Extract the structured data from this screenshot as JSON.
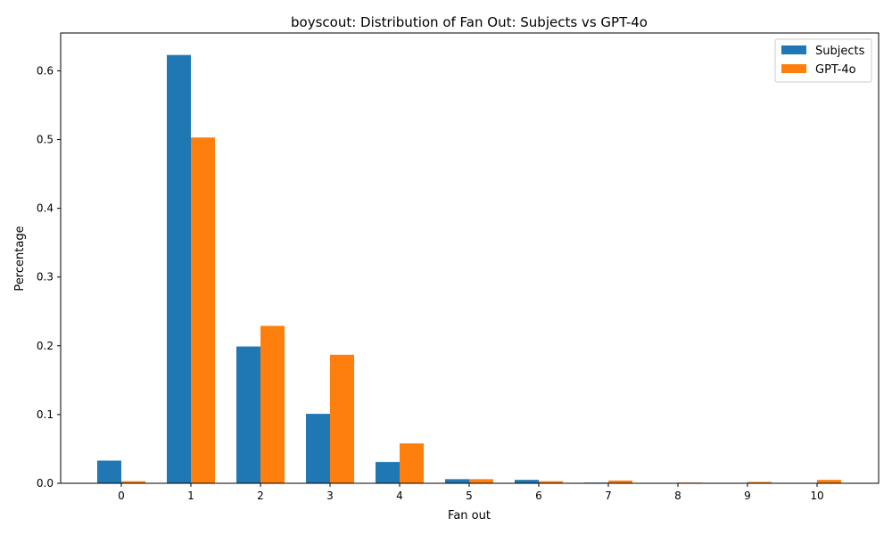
{
  "chart_data": {
    "type": "bar",
    "title": "boyscout: Distribution of Fan Out: Subjects vs GPT-4o",
    "xlabel": "Fan out",
    "ylabel": "Percentage",
    "categories": [
      "0",
      "1",
      "2",
      "3",
      "4",
      "5",
      "6",
      "7",
      "8",
      "9",
      "10"
    ],
    "ylim": [
      0,
      0.655
    ],
    "yticks": [
      "0.0",
      "0.1",
      "0.2",
      "0.3",
      "0.4",
      "0.5",
      "0.6"
    ],
    "legend_position": "top-right",
    "grid": false,
    "series": [
      {
        "name": "Subjects",
        "color": "#1f77b4",
        "values": [
          0.033,
          0.623,
          0.199,
          0.101,
          0.031,
          0.006,
          0.005,
          0.001,
          0.0,
          0.0,
          0.0
        ]
      },
      {
        "name": "GPT-4o",
        "color": "#ff7f0e",
        "values": [
          0.003,
          0.503,
          0.229,
          0.187,
          0.058,
          0.006,
          0.003,
          0.004,
          0.001,
          0.002,
          0.005
        ]
      }
    ]
  }
}
